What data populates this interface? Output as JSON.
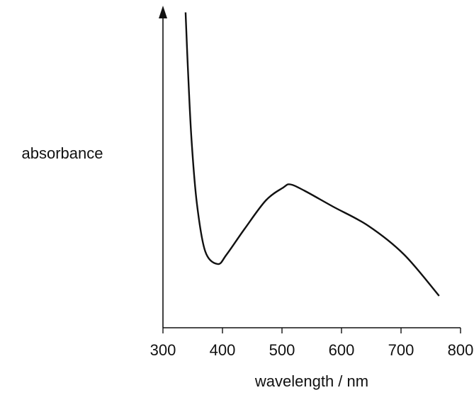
{
  "chart_data": {
    "type": "line",
    "y_label": "absorbance",
    "x_label": "wavelength / nm",
    "x": [
      338,
      342,
      348,
      357,
      371,
      392,
      407,
      437,
      473,
      502,
      514,
      538,
      586,
      645,
      705,
      764
    ],
    "series": [
      {
        "color": "#111111",
        "values": [
          99,
          81,
          59,
          39,
          24,
          20,
          23,
          31,
          40,
          44,
          45,
          43,
          38,
          32,
          23,
          10
        ]
      }
    ],
    "xlim": [
      300,
      800
    ],
    "xticks": [
      300,
      400,
      500,
      600,
      700,
      800
    ],
    "ylim": [
      0,
      100
    ]
  }
}
